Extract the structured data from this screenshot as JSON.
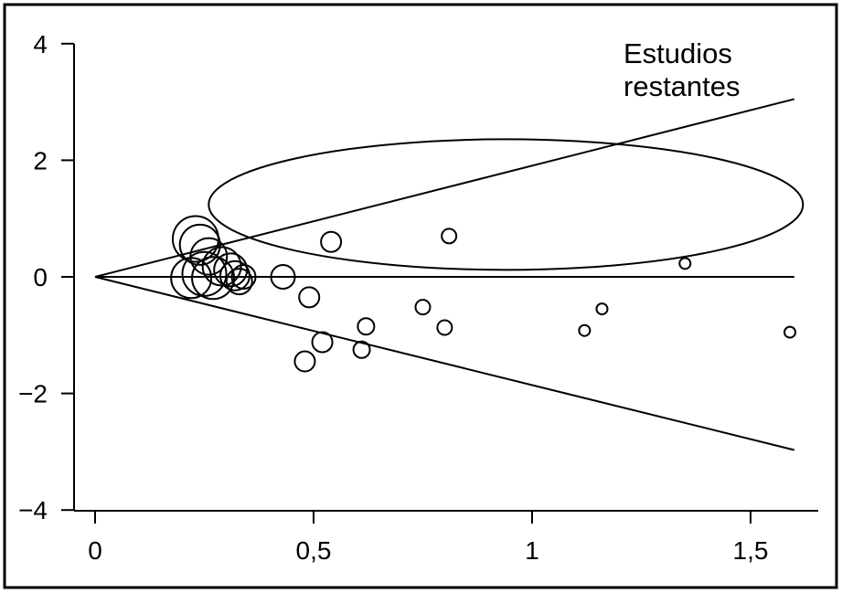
{
  "chart_data": {
    "type": "scatter",
    "title": "",
    "xlabel": "",
    "ylabel": "",
    "xlim": [
      -0.1,
      1.65
    ],
    "ylim": [
      -4,
      4
    ],
    "x_ticks": [
      0,
      0.5,
      1,
      1.5
    ],
    "x_tick_labels": [
      "0",
      "0,5",
      "1",
      "1,5"
    ],
    "y_ticks": [
      4,
      2,
      0,
      -2,
      -4
    ],
    "y_tick_labels": [
      "4",
      "2",
      "0",
      "−2",
      "−4"
    ],
    "grid": false,
    "legend": "none",
    "reference_lines": [
      {
        "name": "null-line",
        "x": [
          0,
          1.6
        ],
        "y": [
          0,
          0
        ]
      },
      {
        "name": "upper-funnel-line",
        "x": [
          0,
          1.6
        ],
        "y": [
          0,
          3.05
        ]
      },
      {
        "name": "lower-funnel-line",
        "x": [
          0,
          1.6
        ],
        "y": [
          0,
          -2.97
        ]
      }
    ],
    "highlight_ellipse": {
      "cx": 0.94,
      "cy": 1.24,
      "rx": 0.68,
      "ry": 1.12
    },
    "annotation": {
      "line1": "Estudios",
      "line2": "restantes"
    },
    "points": [
      {
        "x": 0.23,
        "y": 0.65,
        "r": 25
      },
      {
        "x": 0.24,
        "y": 0.55,
        "r": 22
      },
      {
        "x": 0.26,
        "y": 0.35,
        "r": 20
      },
      {
        "x": 0.22,
        "y": -0.02,
        "r": 22
      },
      {
        "x": 0.25,
        "y": 0.05,
        "r": 24
      },
      {
        "x": 0.27,
        "y": -0.02,
        "r": 23
      },
      {
        "x": 0.29,
        "y": 0.18,
        "r": 21
      },
      {
        "x": 0.31,
        "y": 0.12,
        "r": 18
      },
      {
        "x": 0.32,
        "y": 0.02,
        "r": 16
      },
      {
        "x": 0.33,
        "y": -0.08,
        "r": 14
      },
      {
        "x": 0.34,
        "y": 0.0,
        "r": 13
      },
      {
        "x": 0.43,
        "y": 0.0,
        "r": 13
      },
      {
        "x": 0.49,
        "y": -0.35,
        "r": 11
      },
      {
        "x": 0.54,
        "y": 0.6,
        "r": 11
      },
      {
        "x": 0.52,
        "y": -1.12,
        "r": 11
      },
      {
        "x": 0.48,
        "y": -1.45,
        "r": 11
      },
      {
        "x": 0.62,
        "y": -0.85,
        "r": 9
      },
      {
        "x": 0.61,
        "y": -1.25,
        "r": 9
      },
      {
        "x": 0.75,
        "y": -0.52,
        "r": 8
      },
      {
        "x": 0.8,
        "y": -0.87,
        "r": 8
      },
      {
        "x": 0.81,
        "y": 0.7,
        "r": 8
      },
      {
        "x": 1.12,
        "y": -0.92,
        "r": 6
      },
      {
        "x": 1.16,
        "y": -0.55,
        "r": 6
      },
      {
        "x": 1.35,
        "y": 0.23,
        "r": 6
      },
      {
        "x": 1.59,
        "y": -0.95,
        "r": 6
      }
    ]
  }
}
